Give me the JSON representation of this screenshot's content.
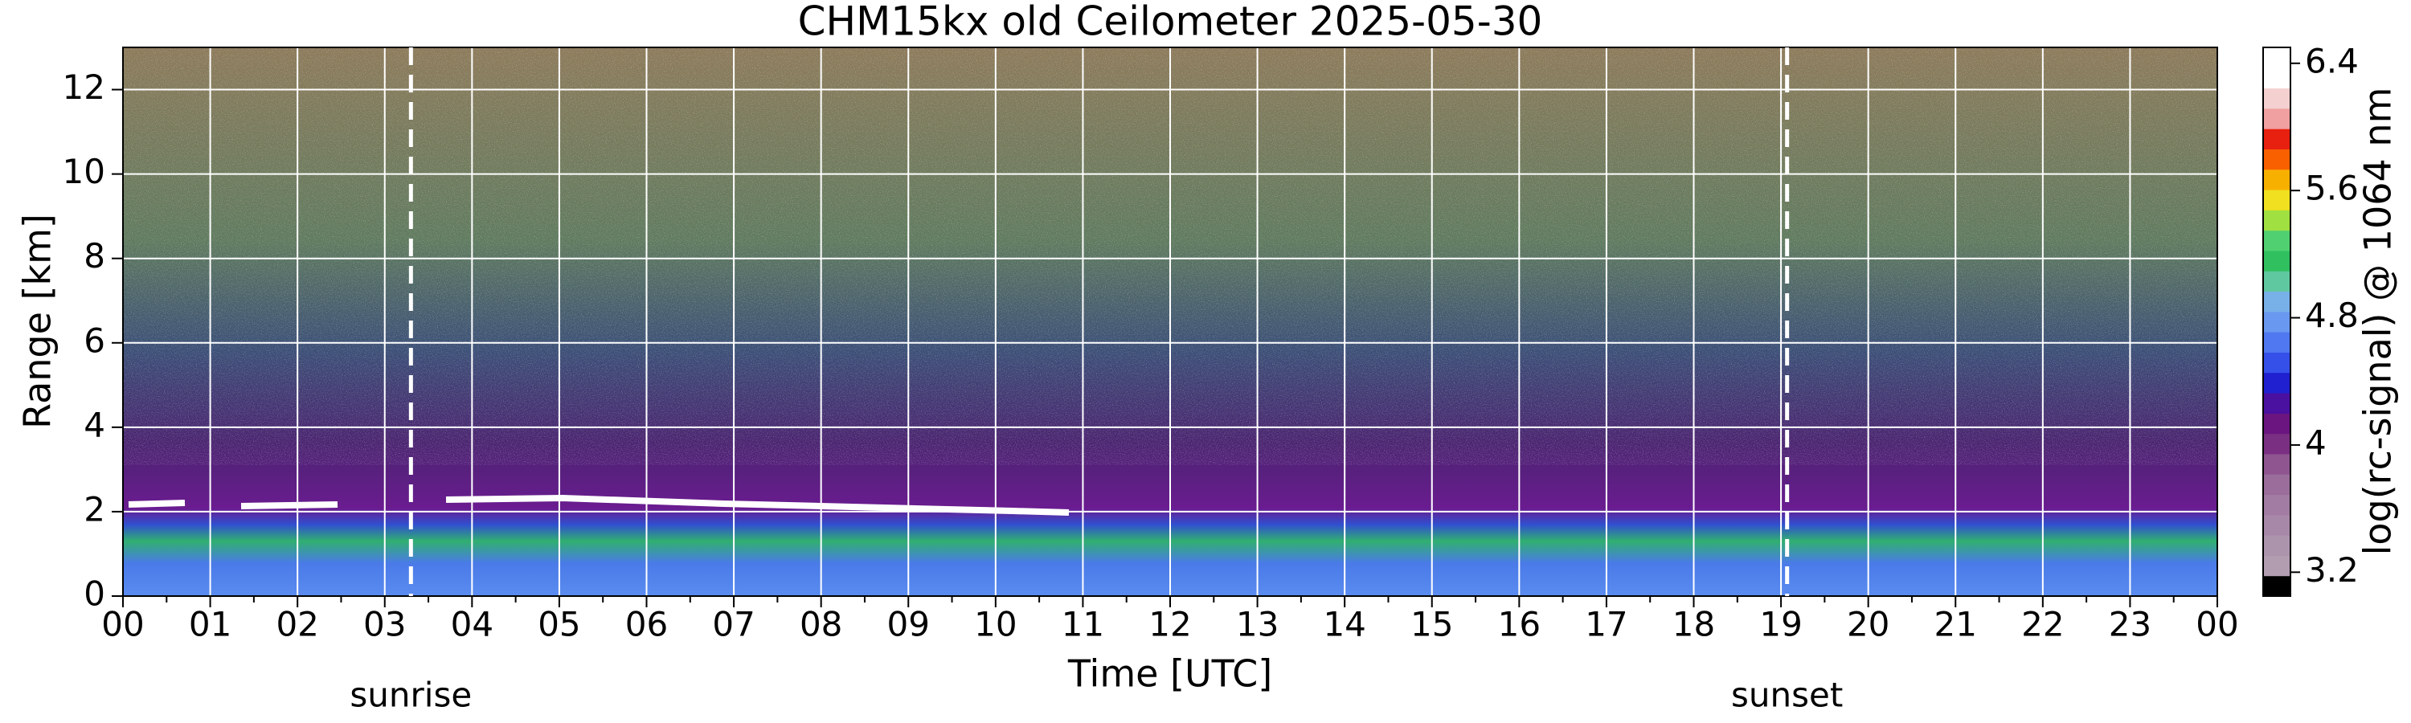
{
  "chart_data": {
    "type": "heatmap",
    "title": "CHM15kx old Ceilometer 2025-05-30",
    "x_label": "Time [UTC]",
    "y_label": "Range [km]",
    "xlim": [
      0,
      24
    ],
    "xticks": [
      {
        "value": 0,
        "label": "00"
      },
      {
        "value": 1,
        "label": "01"
      },
      {
        "value": 2,
        "label": "02"
      },
      {
        "value": 3,
        "label": "03"
      },
      {
        "value": 4,
        "label": "04"
      },
      {
        "value": 5,
        "label": "05"
      },
      {
        "value": 6,
        "label": "06"
      },
      {
        "value": 7,
        "label": "07"
      },
      {
        "value": 8,
        "label": "08"
      },
      {
        "value": 9,
        "label": "09"
      },
      {
        "value": 10,
        "label": "10"
      },
      {
        "value": 11,
        "label": "11"
      },
      {
        "value": 12,
        "label": "12"
      },
      {
        "value": 13,
        "label": "13"
      },
      {
        "value": 14,
        "label": "14"
      },
      {
        "value": 15,
        "label": "15"
      },
      {
        "value": 16,
        "label": "16"
      },
      {
        "value": 17,
        "label": "17"
      },
      {
        "value": 18,
        "label": "18"
      },
      {
        "value": 19,
        "label": "19"
      },
      {
        "value": 20,
        "label": "20"
      },
      {
        "value": 21,
        "label": "21"
      },
      {
        "value": 22,
        "label": "22"
      },
      {
        "value": 23,
        "label": "23"
      },
      {
        "value": 24,
        "label": "00"
      }
    ],
    "xminorticks": [
      0.5,
      1.5,
      2.5,
      3.5,
      4.5,
      5.5,
      6.5,
      7.5,
      8.5,
      9.5,
      10.5,
      11.5,
      12.5,
      13.5,
      14.5,
      15.5,
      16.5,
      17.5,
      18.5,
      19.5,
      20.5,
      21.5,
      22.5,
      23.5
    ],
    "ylim": [
      0,
      13
    ],
    "yticks": [
      0,
      2,
      4,
      6,
      8,
      10,
      12
    ],
    "grid": true,
    "grid_color": "#ffffff",
    "annotations": [
      {
        "text": "sunrise",
        "x": 3.3
      },
      {
        "text": "sunset",
        "x": 19.07
      }
    ],
    "colorbar": {
      "label": "log(rc-signal) @ 1064 nm",
      "lim": [
        3.05,
        6.5
      ],
      "ticks": [
        3.2,
        4,
        4.8,
        5.6,
        6.4
      ],
      "colors": [
        "#000000",
        "#b19cb0",
        "#ad94ad",
        "#a888a8",
        "#a27ca3",
        "#9a6d9b",
        "#8e5590",
        "#7a2f82",
        "#6a1580",
        "#4a10a0",
        "#2020d0",
        "#3550e8",
        "#5078f0",
        "#6898f0",
        "#78b0e8",
        "#60c8a0",
        "#30c060",
        "#50d070",
        "#a0e040",
        "#f0e020",
        "#f8b000",
        "#f86000",
        "#e82010",
        "#f0a0a0",
        "#f4d0d0",
        "#ffffff",
        "#ffffff"
      ]
    }
  }
}
